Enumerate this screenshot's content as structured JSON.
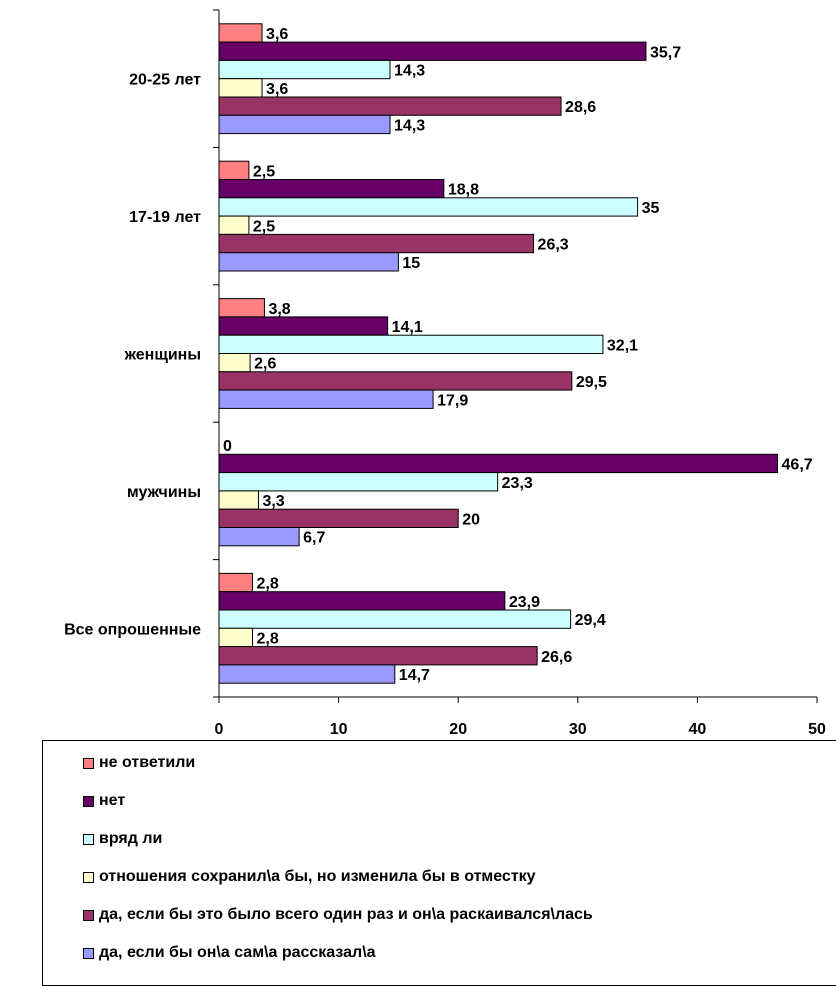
{
  "chart_data": {
    "type": "bar",
    "orientation": "horizontal",
    "categories": [
      "Все опрошенные",
      "мужчины",
      "женщины",
      "17-19 лет",
      "20-25 лет"
    ],
    "series": [
      {
        "name": "не ответили",
        "color": "#FF8080",
        "values": [
          2.8,
          0,
          3.8,
          2.5,
          3.6
        ]
      },
      {
        "name": "нет",
        "color": "#660066",
        "values": [
          23.9,
          46.7,
          14.1,
          18.8,
          35.7
        ]
      },
      {
        "name": "вряд ли",
        "color": "#CCFFFF",
        "values": [
          29.4,
          23.3,
          32.1,
          35,
          14.3
        ]
      },
      {
        "name": "отношения сохранил\\а бы, но изменила бы в отместку",
        "color": "#FFFFCC",
        "values": [
          2.8,
          3.3,
          2.6,
          2.5,
          3.6
        ]
      },
      {
        "name": "да, если бы это было всего один раз и он\\а раскаивался\\лась",
        "color": "#993366",
        "values": [
          26.6,
          20,
          29.5,
          26.3,
          28.6
        ]
      },
      {
        "name": "да, если бы он\\а сам\\а рассказал\\а",
        "color": "#9999FF",
        "values": [
          14.7,
          6.7,
          17.9,
          15,
          14.3
        ]
      }
    ],
    "value_labels": [
      [
        "2,8",
        "0",
        "3,8",
        "2,5",
        "3,6"
      ],
      [
        "23,9",
        "46,7",
        "14,1",
        "18,8",
        "35,7"
      ],
      [
        "29,4",
        "23,3",
        "32,1",
        "35",
        "14,3"
      ],
      [
        "2,8",
        "3,3",
        "2,6",
        "2,5",
        "3,6"
      ],
      [
        "26,6",
        "20",
        "29,5",
        "26,3",
        "28,6"
      ],
      [
        "14,7",
        "6,7",
        "17,9",
        "15",
        "14,3"
      ]
    ],
    "xlim": [
      0,
      50
    ],
    "x_ticks": [
      0,
      10,
      20,
      30,
      40,
      50
    ],
    "x_tick_labels": [
      "0",
      "10",
      "20",
      "30",
      "40",
      "50"
    ],
    "grid": false,
    "legend_position": "bottom"
  },
  "legend": {
    "items": [
      {
        "label": "не ответили",
        "color": "#FF8080"
      },
      {
        "label": "нет",
        "color": "#660066"
      },
      {
        "label": "вряд ли",
        "color": "#CCFFFF"
      },
      {
        "label": "отношения сохранил\\а бы, но изменила бы в отместку",
        "color": "#FFFFCC"
      },
      {
        "label": "да, если бы это было всего один раз и он\\а раскаивался\\лась",
        "color": "#993366"
      },
      {
        "label": "да, если бы он\\а сам\\а рассказал\\а",
        "color": "#9999FF"
      }
    ]
  }
}
